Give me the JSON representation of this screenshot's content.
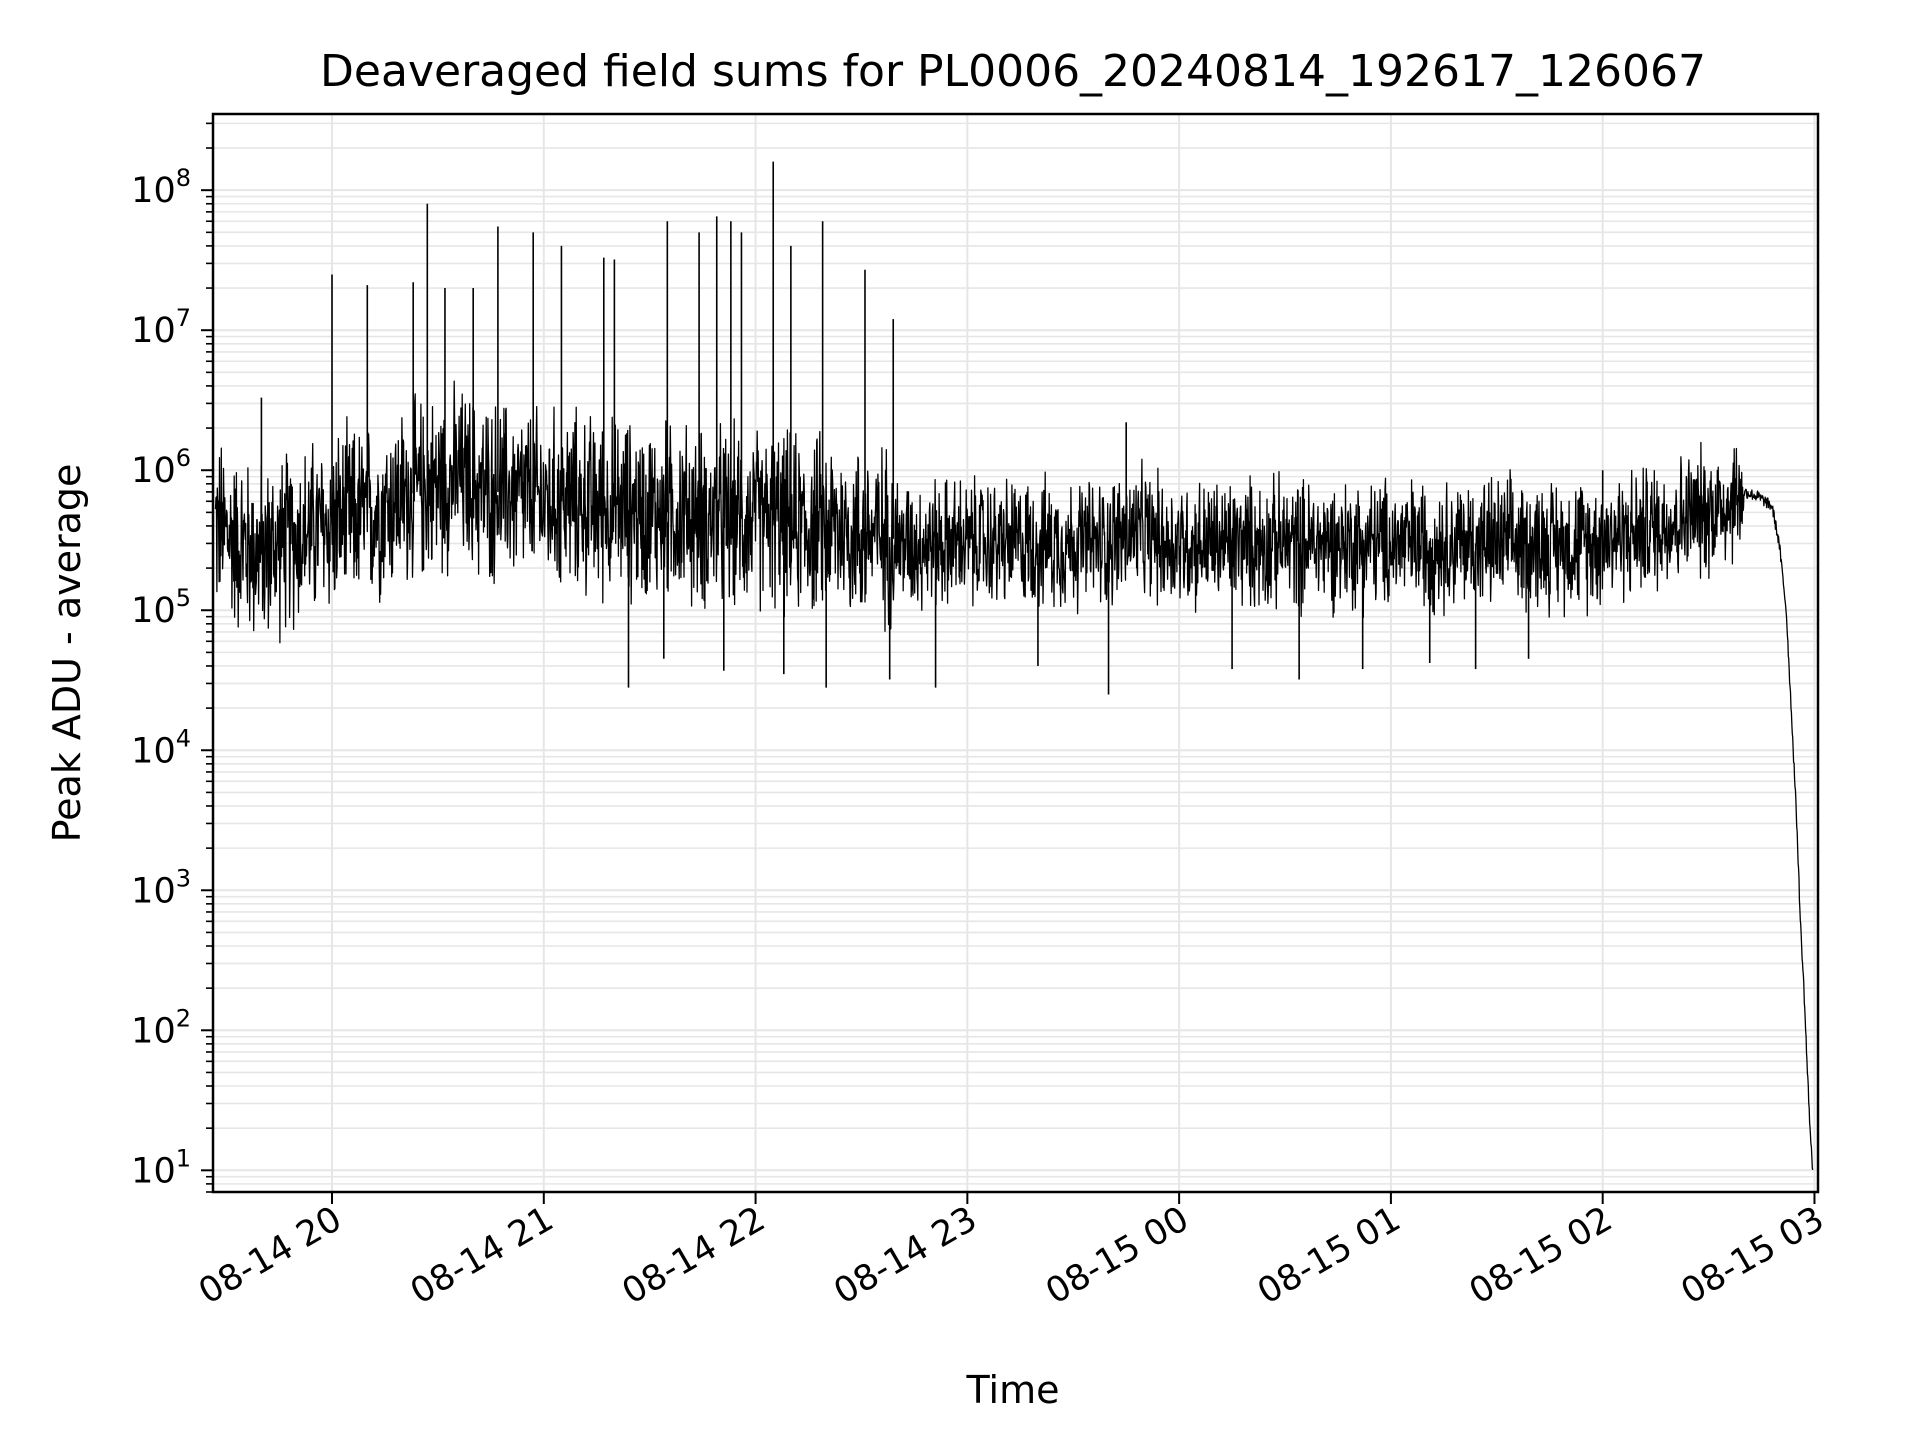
{
  "chart_data": {
    "type": "line",
    "title": "Deaveraged field sums for PL0006_20240814_192617_126067",
    "xlabel": "Time",
    "ylabel": "Peak ADU - average",
    "yscale": "log",
    "ylim": [
      7,
      350000000
    ],
    "xlim": [
      "2024-08-14 19:26:17",
      "2024-08-15 03:01:00"
    ],
    "grid": true,
    "line_color": "#000000",
    "grid_color": "#e6e6e6",
    "x_ticks": [
      {
        "value": "2024-08-14 20:00",
        "label": "08-14 20"
      },
      {
        "value": "2024-08-14 21:00",
        "label": "08-14 21"
      },
      {
        "value": "2024-08-14 22:00",
        "label": "08-14 22"
      },
      {
        "value": "2024-08-14 23:00",
        "label": "08-14 23"
      },
      {
        "value": "2024-08-15 00:00",
        "label": "08-15 00"
      },
      {
        "value": "2024-08-15 01:00",
        "label": "08-15 01"
      },
      {
        "value": "2024-08-15 02:00",
        "label": "08-15 02"
      },
      {
        "value": "2024-08-15 03:00",
        "label": "08-15 03"
      }
    ],
    "y_ticks": [
      {
        "value": 10,
        "base": "10",
        "exp": "1"
      },
      {
        "value": 100,
        "base": "10",
        "exp": "2"
      },
      {
        "value": 1000,
        "base": "10",
        "exp": "3"
      },
      {
        "value": 10000,
        "base": "10",
        "exp": "4"
      },
      {
        "value": 100000,
        "base": "10",
        "exp": "5"
      },
      {
        "value": 1000000,
        "base": "10",
        "exp": "6"
      },
      {
        "value": 10000000,
        "base": "10",
        "exp": "7"
      },
      {
        "value": 100000000,
        "base": "10",
        "exp": "8"
      }
    ],
    "series": [
      {
        "x": [
          "2024-08-14 19:27",
          "2024-08-14 19:34",
          "2024-08-14 19:40",
          "2024-08-14 19:46",
          "2024-08-14 19:52",
          "2024-08-14 19:59",
          "2024-08-14 20:05",
          "2024-08-14 20:11",
          "2024-08-14 20:17",
          "2024-08-14 20:24",
          "2024-08-14 20:30",
          "2024-08-14 20:36",
          "2024-08-14 20:43",
          "2024-08-14 20:49",
          "2024-08-14 20:55",
          "2024-08-14 21:01",
          "2024-08-14 21:08",
          "2024-08-14 21:14",
          "2024-08-14 21:20",
          "2024-08-14 21:27",
          "2024-08-14 21:33",
          "2024-08-14 21:39",
          "2024-08-14 21:45",
          "2024-08-14 21:52",
          "2024-08-14 21:58",
          "2024-08-14 22:04",
          "2024-08-14 22:10",
          "2024-08-14 22:17",
          "2024-08-14 22:23",
          "2024-08-14 22:29",
          "2024-08-14 22:36",
          "2024-08-14 22:42",
          "2024-08-14 22:48",
          "2024-08-14 22:54",
          "2024-08-14 23:01",
          "2024-08-14 23:07",
          "2024-08-14 23:13",
          "2024-08-14 23:20",
          "2024-08-14 23:26",
          "2024-08-14 23:32",
          "2024-08-14 23:38",
          "2024-08-14 23:45",
          "2024-08-14 23:51",
          "2024-08-14 23:57",
          "2024-08-15 00:03",
          "2024-08-15 00:10",
          "2024-08-15 00:16",
          "2024-08-15 00:22",
          "2024-08-15 00:29",
          "2024-08-15 00:35",
          "2024-08-15 00:41",
          "2024-08-15 00:47",
          "2024-08-15 00:54",
          "2024-08-15 01:00",
          "2024-08-15 01:06",
          "2024-08-15 01:13",
          "2024-08-15 01:19",
          "2024-08-15 01:25",
          "2024-08-15 01:31",
          "2024-08-15 01:38",
          "2024-08-15 01:44",
          "2024-08-15 01:50",
          "2024-08-15 01:56",
          "2024-08-15 02:03",
          "2024-08-15 02:09",
          "2024-08-15 02:15",
          "2024-08-15 02:22",
          "2024-08-15 02:28",
          "2024-08-15 02:34",
          "2024-08-15 02:40",
          "2024-08-15 02:44",
          "2024-08-15 02:48",
          "2024-08-15 02:50",
          "2024-08-15 02:52",
          "2024-08-15 02:54",
          "2024-08-15 02:55",
          "2024-08-15 02:56",
          "2024-08-15 02:57",
          "2024-08-15 02:58",
          "2024-08-15 02:59",
          "2024-08-15 02:59:30"
        ],
        "y": [
          400000,
          300000,
          250000,
          300000,
          350000,
          400000,
          450000,
          500000,
          600000,
          700000,
          800000,
          900000,
          700000,
          700000,
          650000,
          600000,
          600000,
          550000,
          550000,
          500000,
          500000,
          500000,
          450000,
          450000,
          450000,
          450000,
          400000,
          400000,
          400000,
          350000,
          350000,
          300000,
          300000,
          300000,
          300000,
          300000,
          300000,
          300000,
          300000,
          300000,
          300000,
          350000,
          350000,
          300000,
          300000,
          300000,
          300000,
          300000,
          300000,
          300000,
          300000,
          300000,
          300000,
          300000,
          300000,
          300000,
          300000,
          300000,
          300000,
          300000,
          300000,
          300000,
          300000,
          350000,
          350000,
          400000,
          450000,
          500000,
          550000,
          700000,
          650000,
          550000,
          300000,
          100000,
          10000,
          3000,
          600,
          200,
          50,
          15,
          10
        ]
      }
    ],
    "spikes": [
      {
        "x": "2024-08-14 19:40",
        "y": 3300000
      },
      {
        "x": "2024-08-14 20:00",
        "y": 25000000
      },
      {
        "x": "2024-08-14 20:10",
        "y": 21000000
      },
      {
        "x": "2024-08-14 20:23",
        "y": 22000000
      },
      {
        "x": "2024-08-14 20:27",
        "y": 80000000
      },
      {
        "x": "2024-08-14 20:32",
        "y": 20000000
      },
      {
        "x": "2024-08-14 20:40",
        "y": 20000000
      },
      {
        "x": "2024-08-14 20:47",
        "y": 55000000
      },
      {
        "x": "2024-08-14 20:57",
        "y": 50000000
      },
      {
        "x": "2024-08-14 21:05",
        "y": 40000000
      },
      {
        "x": "2024-08-14 21:17",
        "y": 33000000
      },
      {
        "x": "2024-08-14 21:20",
        "y": 32000000
      },
      {
        "x": "2024-08-14 21:35",
        "y": 60000000
      },
      {
        "x": "2024-08-14 21:44",
        "y": 50000000
      },
      {
        "x": "2024-08-14 21:49",
        "y": 65000000
      },
      {
        "x": "2024-08-14 21:53",
        "y": 60000000
      },
      {
        "x": "2024-08-14 21:56",
        "y": 50000000
      },
      {
        "x": "2024-08-14 22:05",
        "y": 160000000
      },
      {
        "x": "2024-08-14 22:10",
        "y": 40000000
      },
      {
        "x": "2024-08-14 22:19",
        "y": 60000000
      },
      {
        "x": "2024-08-14 22:31",
        "y": 27000000
      },
      {
        "x": "2024-08-14 22:39",
        "y": 12000000
      },
      {
        "x": "2024-08-14 23:45",
        "y": 2200000
      },
      {
        "x": "2024-08-15 02:00",
        "y": 1000000
      }
    ],
    "dips": [
      {
        "x": "2024-08-14 21:24",
        "y": 28000
      },
      {
        "x": "2024-08-14 21:34",
        "y": 45000
      },
      {
        "x": "2024-08-14 21:51",
        "y": 37000
      },
      {
        "x": "2024-08-14 22:08",
        "y": 35000
      },
      {
        "x": "2024-08-14 22:20",
        "y": 28000
      },
      {
        "x": "2024-08-14 22:38",
        "y": 32000
      },
      {
        "x": "2024-08-14 22:51",
        "y": 28000
      },
      {
        "x": "2024-08-14 23:20",
        "y": 40000
      },
      {
        "x": "2024-08-14 23:40",
        "y": 25000
      },
      {
        "x": "2024-08-15 00:15",
        "y": 38000
      },
      {
        "x": "2024-08-15 00:34",
        "y": 32000
      },
      {
        "x": "2024-08-15 00:52",
        "y": 38000
      },
      {
        "x": "2024-08-15 01:11",
        "y": 42000
      },
      {
        "x": "2024-08-15 01:24",
        "y": 38000
      },
      {
        "x": "2024-08-15 01:39",
        "y": 45000
      }
    ]
  }
}
